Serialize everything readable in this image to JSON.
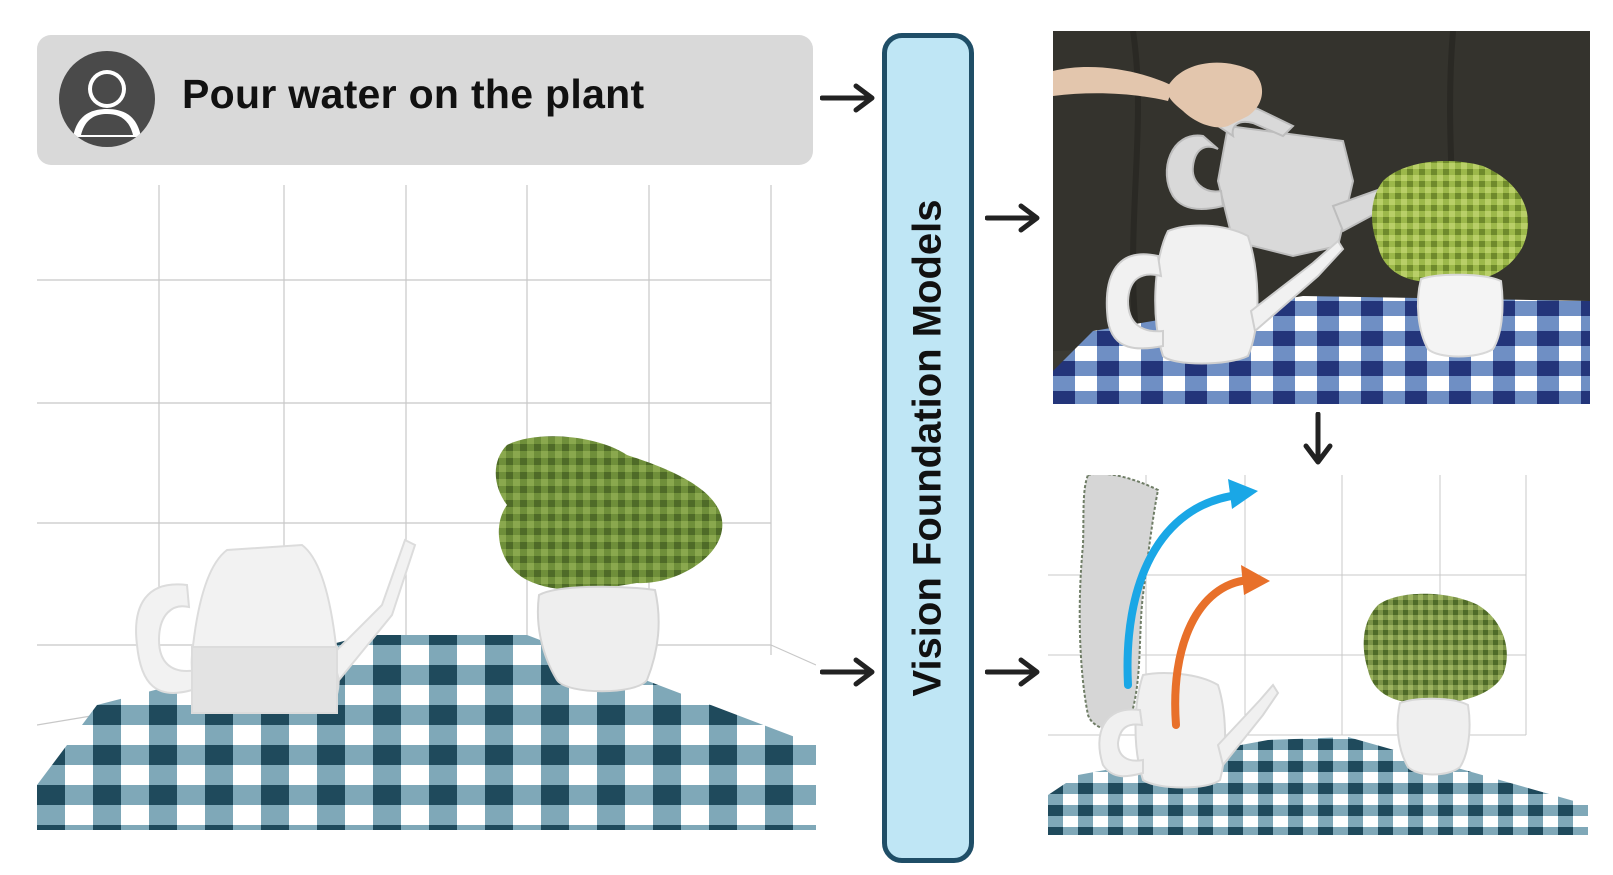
{
  "prompt": {
    "text": "Pour water on the plant",
    "avatar_icon": "user-avatar-icon"
  },
  "module": {
    "label": "Vision Foundation Models"
  },
  "colors": {
    "prompt_box": "#d9d9d9",
    "avatar": "#4a4a4a",
    "module_fill": "#bfe6f5",
    "module_border": "#1f4e67",
    "trajectory_blue": "#1aa7e6",
    "trajectory_orange": "#e8702a",
    "cloth_blue": "#2e5e76",
    "plant_green": "#6f8f3a",
    "arrow": "#222222"
  },
  "icons": {
    "arrows": [
      "arrow-right-icon",
      "arrow-down-icon"
    ]
  }
}
